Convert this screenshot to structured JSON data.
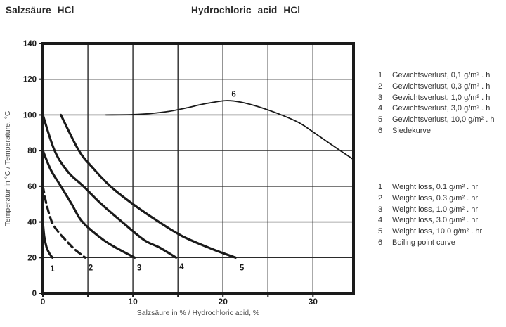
{
  "header": {
    "title_de": "Salzsäure  HCl",
    "title_en": "Hydrochloric  acid  HCl"
  },
  "chart_data": {
    "type": "line",
    "title": "",
    "xlabel": "Salzsäure in % / Hydrochloric acid, %",
    "ylabel": "Temperatur in °C / Temperature, °C",
    "xlim": [
      0,
      34.5
    ],
    "ylim": [
      0,
      140
    ],
    "x_ticks": [
      0,
      10,
      20,
      30
    ],
    "x_tickmarks": [
      0,
      5,
      10,
      15,
      20,
      25,
      30
    ],
    "x_gridlines": [
      5,
      10,
      15,
      20,
      25,
      30
    ],
    "y_ticks": [
      0,
      20,
      40,
      60,
      80,
      100,
      120,
      140
    ],
    "y_gridlines": [
      20,
      40,
      60,
      80,
      100,
      120
    ],
    "grid": true,
    "legend_position": "right",
    "line_color": "#1a1a1a",
    "grid_color": "#2a2a2a",
    "series": [
      {
        "id": "1",
        "name": "Weight loss 0.1 g/m² . hr",
        "dashed": false,
        "width": 3.2,
        "points": [
          [
            0,
            40
          ],
          [
            0.15,
            32
          ],
          [
            0.4,
            26
          ],
          [
            0.7,
            22.5
          ],
          [
            1.05,
            20
          ]
        ],
        "label": "1",
        "label_pos": [
          1.05,
          13.5
        ]
      },
      {
        "id": "2",
        "name": "Weight loss 0.3 g/m² . hr",
        "dashed": true,
        "width": 3.2,
        "points": [
          [
            0,
            60
          ],
          [
            0.4,
            50
          ],
          [
            1,
            40
          ],
          [
            1.7,
            34.5
          ],
          [
            2.5,
            30
          ],
          [
            3.5,
            24.8
          ],
          [
            4.7,
            20
          ]
        ],
        "label": "2",
        "label_pos": [
          5.3,
          14
        ]
      },
      {
        "id": "3",
        "name": "Weight loss 1.0 g/m² . hr",
        "dashed": false,
        "width": 3.2,
        "points": [
          [
            0,
            80
          ],
          [
            0.9,
            69
          ],
          [
            2,
            60
          ],
          [
            3.2,
            50
          ],
          [
            4.4,
            40
          ],
          [
            6.7,
            30
          ],
          [
            8.5,
            24.5
          ],
          [
            10.2,
            20
          ]
        ],
        "label": "3",
        "label_pos": [
          10.7,
          14
        ]
      },
      {
        "id": "4",
        "name": "Weight loss 3.0 g/m² . hr",
        "dashed": false,
        "width": 3.2,
        "points": [
          [
            0,
            100
          ],
          [
            1.3,
            80
          ],
          [
            2.8,
            68
          ],
          [
            4.5,
            60
          ],
          [
            6.5,
            50
          ],
          [
            8.8,
            40
          ],
          [
            11.2,
            30
          ],
          [
            13,
            25.5
          ],
          [
            14.8,
            20
          ]
        ],
        "label": "4",
        "label_pos": [
          15.4,
          14.5
        ]
      },
      {
        "id": "5",
        "name": "Weight loss 10.0 g/m² . hr",
        "dashed": false,
        "width": 3.2,
        "points": [
          [
            2,
            100
          ],
          [
            4,
            80
          ],
          [
            5.6,
            70
          ],
          [
            7.5,
            60
          ],
          [
            10,
            50
          ],
          [
            12.9,
            40
          ],
          [
            15.5,
            32
          ],
          [
            18.7,
            25
          ],
          [
            21.4,
            20
          ]
        ],
        "label": "5",
        "label_pos": [
          22.1,
          14
        ]
      },
      {
        "id": "6",
        "name": "Boiling point curve",
        "dashed": false,
        "width": 1.8,
        "points": [
          [
            7,
            100
          ],
          [
            10,
            100.2
          ],
          [
            12,
            100.8
          ],
          [
            14,
            102
          ],
          [
            16,
            104
          ],
          [
            18,
            106.3
          ],
          [
            20.3,
            108
          ],
          [
            22,
            107.2
          ],
          [
            24,
            104.5
          ],
          [
            26.5,
            100
          ],
          [
            28.5,
            95.5
          ],
          [
            30,
            90.5
          ],
          [
            32,
            83.5
          ],
          [
            34.5,
            75
          ]
        ],
        "label": "6",
        "label_pos": [
          21.2,
          111.5
        ]
      }
    ]
  },
  "legend_de": {
    "items": [
      {
        "num": "1",
        "text": "Gewichtsverlust, 0,1 g/m² . h"
      },
      {
        "num": "2",
        "text": "Gewichtsverlust, 0,3 g/m² . h"
      },
      {
        "num": "3",
        "text": "Gewichtsverlust, 1,0 g/m² . h"
      },
      {
        "num": "4",
        "text": "Gewichtsverlust, 3,0 g/m² . h"
      },
      {
        "num": "5",
        "text": "Gewichtsverlust, 10,0 g/m² . h"
      },
      {
        "num": "6",
        "text": "Siedekurve"
      }
    ]
  },
  "legend_en": {
    "items": [
      {
        "num": "1",
        "text": "Weight loss, 0.1 g/m² . hr"
      },
      {
        "num": "2",
        "text": "Weight loss, 0.3 g/m² . hr"
      },
      {
        "num": "3",
        "text": "Weight loss, 1.0 g/m² . hr"
      },
      {
        "num": "4",
        "text": "Weight loss, 3.0 g/m² . hr"
      },
      {
        "num": "5",
        "text": "Weight loss, 10.0 g/m² . hr"
      },
      {
        "num": "6",
        "text": "Boiling point curve"
      }
    ]
  }
}
